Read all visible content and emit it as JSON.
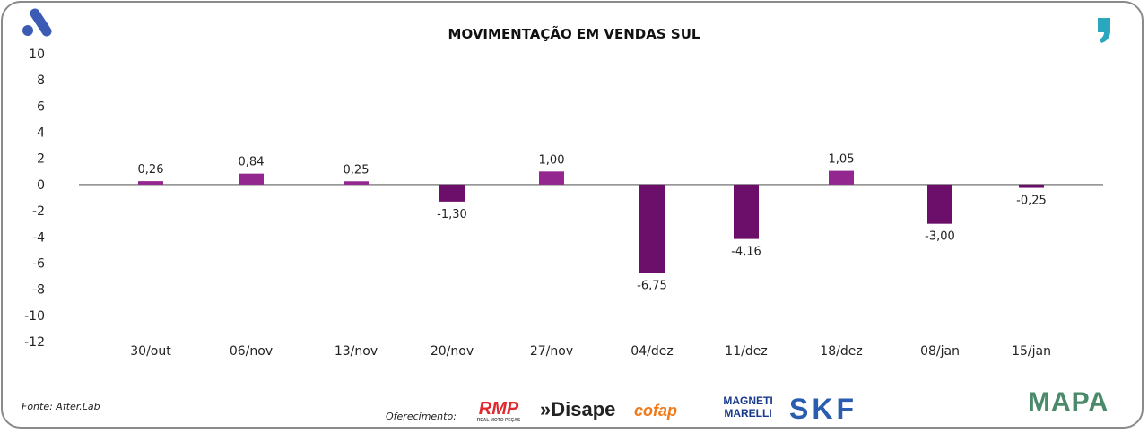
{
  "chart_data": {
    "type": "bar",
    "title": "MOVIMENTAÇÃO EM VENDAS SUL",
    "categories": [
      "30/out",
      "06/nov",
      "13/nov",
      "20/nov",
      "27/nov",
      "04/dez",
      "11/dez",
      "18/dez",
      "08/jan",
      "15/jan"
    ],
    "values": [
      0.26,
      0.84,
      0.25,
      -1.3,
      1.0,
      -6.75,
      -4.16,
      1.05,
      -3.0,
      -0.25
    ],
    "labels": [
      "0,26",
      "0,84",
      "0,25",
      "-1,30",
      "1,00",
      "-6,75",
      "-4,16",
      "1,05",
      "-3,00",
      "-0,25"
    ],
    "ylim": [
      -12,
      10
    ],
    "yticks": [
      "10",
      "8",
      "6",
      "4",
      "2",
      "0",
      "-2",
      "-4",
      "-6",
      "-8",
      "-10",
      "-12"
    ],
    "xlabel": "",
    "ylabel": "",
    "grid": false,
    "colors": {
      "positive": "#93278f",
      "negative": "#6b0f6b",
      "axis": "#8a8a8a"
    }
  },
  "footer": {
    "source": "Fonte: After.Lab",
    "sponsor_label": "Oferecimento:",
    "sponsors": [
      "RMP",
      "REAL MOTO PEÇAS",
      "»Disape",
      "cofap",
      "MAGNETI MARELLI",
      "SKF"
    ],
    "brand": "MAPA"
  }
}
